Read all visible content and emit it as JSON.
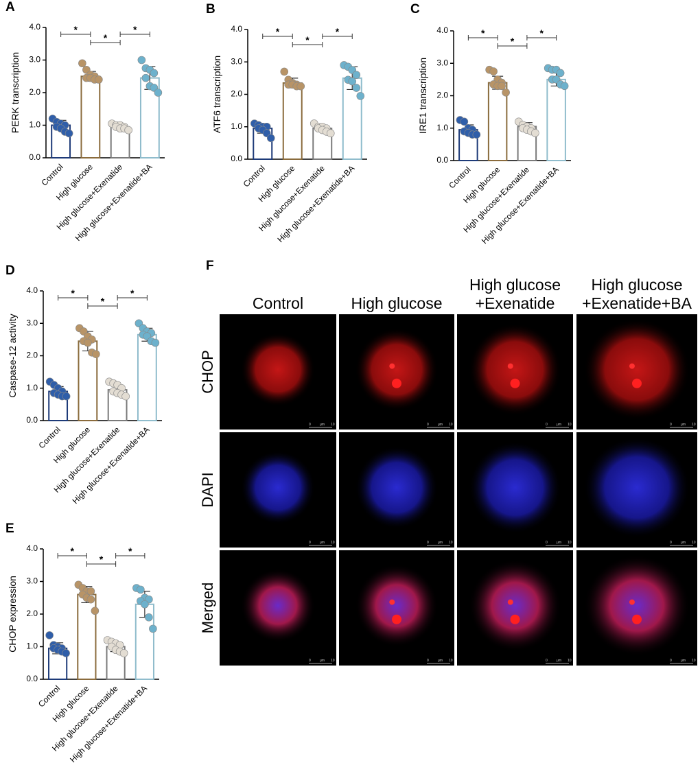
{
  "chart_data": [
    {
      "type": "bar",
      "panel": "A",
      "y_label": "PERK transcription",
      "categories": [
        "Control",
        "High glucose",
        "High glucose+Exenatide",
        "High glucose+Exenatide+BA"
      ],
      "values": [
        1.0,
        2.5,
        0.95,
        2.45
      ],
      "errors": [
        0.15,
        0.15,
        0.07,
        0.35
      ],
      "points": [
        [
          1.2,
          1.1,
          1.05,
          1.0,
          0.95,
          0.9,
          0.8,
          0.75
        ],
        [
          2.9,
          2.7,
          2.55,
          2.5,
          2.45,
          2.45,
          2.4,
          2.4
        ],
        [
          1.05,
          1.0,
          1.0,
          0.95,
          0.95,
          0.9,
          0.9,
          0.85
        ],
        [
          3.0,
          2.75,
          2.7,
          2.6,
          2.45,
          2.2,
          2.15,
          2.0
        ]
      ],
      "bar_colors": [
        "#1d3a78",
        "#8a6b3c",
        "#7a7a7a",
        "#8fbccc"
      ],
      "dot_colors": [
        "#2f5ea9",
        "#b89467",
        "#e3ddd3",
        "#6db1cc"
      ],
      "ylim": [
        0,
        4
      ],
      "yticks": [
        {
          "value": 0,
          "label": "0.0"
        },
        {
          "value": 1,
          "label": "1.0"
        },
        {
          "value": 2,
          "label": "2.0"
        },
        {
          "value": 3,
          "label": "3.0"
        },
        {
          "value": 4,
          "label": "4.0"
        }
      ],
      "comparisons": [
        {
          "between": [
            "Control",
            "High glucose"
          ],
          "label": "*"
        },
        {
          "between": [
            "High glucose",
            "High glucose+Exenatide"
          ],
          "label": "*"
        },
        {
          "between": [
            "High glucose+Exenatide",
            "High glucose+Exenatide+BA"
          ],
          "label": "*"
        }
      ]
    },
    {
      "type": "bar",
      "panel": "B",
      "y_label": "ATF6 transcription",
      "categories": [
        "Control",
        "High glucose",
        "High glucose+Exenatide",
        "High glucose+Exenatide+BA"
      ],
      "values": [
        0.95,
        2.35,
        0.95,
        2.5
      ],
      "errors": [
        0.15,
        0.15,
        0.1,
        0.35
      ],
      "points": [
        [
          1.1,
          1.05,
          1.0,
          1.0,
          0.95,
          0.9,
          0.8,
          0.65
        ],
        [
          2.7,
          2.45,
          2.35,
          2.3,
          2.3,
          2.3,
          2.25,
          2.25
        ],
        [
          1.1,
          1.0,
          1.0,
          0.95,
          0.95,
          0.9,
          0.85,
          0.8
        ],
        [
          2.9,
          2.85,
          2.75,
          2.6,
          2.45,
          2.4,
          2.2,
          1.95
        ]
      ],
      "bar_colors": [
        "#1d3a78",
        "#8a6b3c",
        "#7a7a7a",
        "#8fbccc"
      ],
      "dot_colors": [
        "#2f5ea9",
        "#b89467",
        "#e3ddd3",
        "#6db1cc"
      ],
      "ylim": [
        0,
        4
      ],
      "yticks": [
        {
          "value": 0,
          "label": "0.0"
        },
        {
          "value": 1,
          "label": "1.0"
        },
        {
          "value": 2,
          "label": "2.0"
        },
        {
          "value": 3,
          "label": "3.0"
        },
        {
          "value": 4,
          "label": "4.0"
        }
      ],
      "comparisons": [
        {
          "between": [
            "Control",
            "High glucose"
          ],
          "label": "*"
        },
        {
          "between": [
            "High glucose",
            "High glucose+Exenatide"
          ],
          "label": "*"
        },
        {
          "between": [
            "High glucose+Exenatide",
            "High glucose+Exenatide+BA"
          ],
          "label": "*"
        }
      ]
    },
    {
      "type": "bar",
      "panel": "C",
      "y_label": "IRE1 transcription",
      "categories": [
        "Control",
        "High glucose",
        "High glucose+Exenatide",
        "High glucose+Exenatide+BA"
      ],
      "values": [
        0.95,
        2.4,
        1.05,
        2.5
      ],
      "errors": [
        0.15,
        0.2,
        0.12,
        0.2
      ],
      "points": [
        [
          1.25,
          1.2,
          1.0,
          0.95,
          0.9,
          0.85,
          0.8,
          0.8
        ],
        [
          2.8,
          2.75,
          2.5,
          2.4,
          2.35,
          2.3,
          2.3,
          2.1
        ],
        [
          1.2,
          1.1,
          1.05,
          1.0,
          1.0,
          0.95,
          0.9,
          0.85
        ],
        [
          2.85,
          2.8,
          2.8,
          2.7,
          2.5,
          2.5,
          2.35,
          2.3
        ]
      ],
      "bar_colors": [
        "#1d3a78",
        "#8a6b3c",
        "#7a7a7a",
        "#8fbccc"
      ],
      "dot_colors": [
        "#2f5ea9",
        "#b89467",
        "#e3ddd3",
        "#6db1cc"
      ],
      "ylim": [
        0,
        4
      ],
      "yticks": [
        {
          "value": 0,
          "label": "0.0"
        },
        {
          "value": 1,
          "label": "1.0"
        },
        {
          "value": 2,
          "label": "2.0"
        },
        {
          "value": 3,
          "label": "3.0"
        },
        {
          "value": 4,
          "label": "4.0"
        }
      ],
      "comparisons": [
        {
          "between": [
            "Control",
            "High glucose"
          ],
          "label": "*"
        },
        {
          "between": [
            "High glucose",
            "High glucose+Exenatide"
          ],
          "label": "*"
        },
        {
          "between": [
            "High glucose+Exenatide",
            "High glucose+Exenatide+BA"
          ],
          "label": "*"
        }
      ]
    },
    {
      "type": "bar",
      "panel": "D",
      "y_label": "Caspase-12 activity",
      "categories": [
        "Control",
        "High glucose",
        "High glucose+Exenatide",
        "High glucose+Exenatide+BA"
      ],
      "values": [
        0.9,
        2.45,
        0.95,
        2.65
      ],
      "errors": [
        0.15,
        0.3,
        0.15,
        0.2
      ],
      "points": [
        [
          1.2,
          1.1,
          1.0,
          0.9,
          0.85,
          0.8,
          0.75,
          0.75
        ],
        [
          2.85,
          2.75,
          2.6,
          2.5,
          2.45,
          2.4,
          2.1,
          2.05
        ],
        [
          1.2,
          1.15,
          1.1,
          1.0,
          0.9,
          0.85,
          0.8,
          0.75
        ],
        [
          3.0,
          2.85,
          2.75,
          2.7,
          2.65,
          2.6,
          2.45,
          2.4
        ]
      ],
      "bar_colors": [
        "#1d3a78",
        "#8a6b3c",
        "#7a7a7a",
        "#8fbccc"
      ],
      "dot_colors": [
        "#2f5ea9",
        "#b89467",
        "#e3ddd3",
        "#6db1cc"
      ],
      "ylim": [
        0,
        4
      ],
      "yticks": [
        {
          "value": 0,
          "label": "0.0"
        },
        {
          "value": 1,
          "label": "1.0"
        },
        {
          "value": 2,
          "label": "2.0"
        },
        {
          "value": 3,
          "label": "3.0"
        },
        {
          "value": 4,
          "label": "4.0"
        }
      ],
      "comparisons": [
        {
          "between": [
            "Control",
            "High glucose"
          ],
          "label": "*"
        },
        {
          "between": [
            "High glucose",
            "High glucose+Exenatide"
          ],
          "label": "*"
        },
        {
          "between": [
            "High glucose+Exenatide",
            "High glucose+Exenatide+BA"
          ],
          "label": "*"
        }
      ]
    },
    {
      "type": "bar",
      "panel": "E",
      "y_label": "CHOP  expression",
      "categories": [
        "Control",
        "High glucose",
        "High glucose+Exenatide",
        "High glucose+Exenatide+BA"
      ],
      "values": [
        0.95,
        2.6,
        1.0,
        2.3
      ],
      "errors": [
        0.17,
        0.25,
        0.15,
        0.4
      ],
      "points": [
        [
          1.35,
          1.05,
          1.0,
          0.95,
          0.95,
          0.9,
          0.85,
          0.8
        ],
        [
          2.9,
          2.8,
          2.7,
          2.7,
          2.6,
          2.5,
          2.45,
          2.1
        ],
        [
          1.2,
          1.15,
          1.1,
          1.05,
          1.0,
          0.9,
          0.85,
          0.8
        ],
        [
          2.8,
          2.75,
          2.5,
          2.45,
          2.4,
          2.3,
          1.9,
          1.55
        ]
      ],
      "bar_colors": [
        "#1d3a78",
        "#8a6b3c",
        "#7a7a7a",
        "#8fbccc"
      ],
      "dot_colors": [
        "#2f5ea9",
        "#b89467",
        "#e3ddd3",
        "#6db1cc"
      ],
      "ylim": [
        0,
        4
      ],
      "yticks": [
        {
          "value": 0,
          "label": "0.0"
        },
        {
          "value": 1,
          "label": "1.0"
        },
        {
          "value": 2,
          "label": "2.0"
        },
        {
          "value": 3,
          "label": "3.0"
        },
        {
          "value": 4,
          "label": "4.0"
        }
      ],
      "comparisons": [
        {
          "between": [
            "Control",
            "High glucose"
          ],
          "label": "*"
        },
        {
          "between": [
            "High glucose",
            "High glucose+Exenatide"
          ],
          "label": "*"
        },
        {
          "between": [
            "High glucose+Exenatide",
            "High glucose+Exenatide+BA"
          ],
          "label": "*"
        }
      ]
    }
  ],
  "image_panel": {
    "panel": "F",
    "columns": [
      [
        "Control"
      ],
      [
        "High glucose"
      ],
      [
        "High glucose",
        "+Exenatide"
      ],
      [
        "High glucose",
        "+Exenatide+BA"
      ]
    ],
    "rows": [
      "CHOP",
      "DAPI",
      "Merged"
    ],
    "scale_bar": [
      "0",
      "μm",
      "10"
    ]
  }
}
